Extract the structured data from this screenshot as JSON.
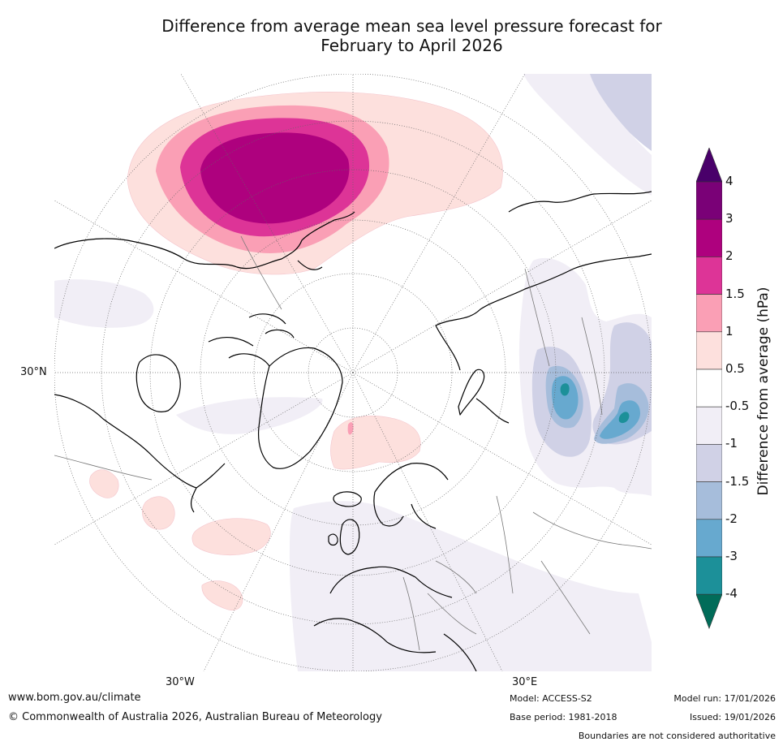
{
  "title_line1": "Difference from average mean sea level pressure forecast for",
  "title_line2": "February to April 2026",
  "map": {
    "labels": {
      "lat30n": "30°N",
      "lon30w": "30°W",
      "lon30e": "30°E"
    }
  },
  "colorbar": {
    "title": "Difference from average (hPa)",
    "ticks": [
      "4",
      "3",
      "2",
      "1.5",
      "1",
      "0.5",
      "-0.5",
      "-1",
      "-1.5",
      "-2",
      "-3",
      "-4"
    ],
    "levels": [
      {
        "range": "3 to 4",
        "color": "#7a0177"
      },
      {
        "range": "2 to 3",
        "color": "#ae017e"
      },
      {
        "range": "1.5 to 2",
        "color": "#dd3497"
      },
      {
        "range": "1 to 1.5",
        "color": "#fa9fb5"
      },
      {
        "range": "0.5 to 1",
        "color": "#fde0dd"
      },
      {
        "range": "-0.5 to 0.5",
        "color": "#ffffff"
      },
      {
        "range": "-1 to -0.5",
        "color": "#f1eef6"
      },
      {
        "range": "-1.5 to -1",
        "color": "#d0d1e6"
      },
      {
        "range": "-2 to -1.5",
        "color": "#a6bddb"
      },
      {
        "range": "-3 to -2",
        "color": "#67a9cf"
      },
      {
        "range": "-4 to -3",
        "color": "#1c9099"
      }
    ],
    "extend_high_color": "#49006a",
    "extend_low_color": "#016c59"
  },
  "footer": {
    "website": "www.bom.gov.au/climate",
    "copyright": "© Commonwealth of Australia 2026, Australian Bureau of Meteorology",
    "model": "Model: ACCESS-S2",
    "base_period": "Base period: 1981-2018",
    "model_run": "Model run: 17/01/2026",
    "issued": "Issued: 19/01/2026",
    "disclaimer": "Boundaries are not considered authoritative"
  }
}
